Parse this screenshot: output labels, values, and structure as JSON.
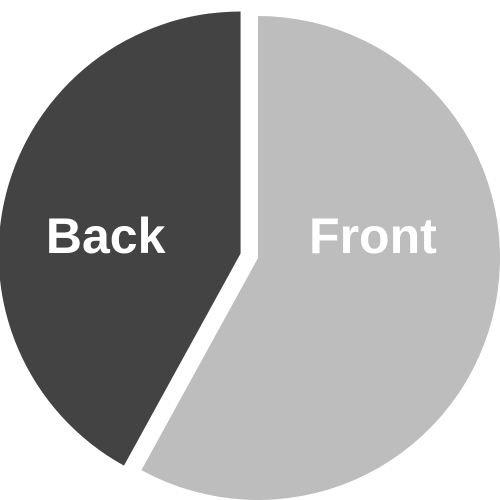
{
  "chart_data": {
    "type": "pie",
    "title": "",
    "slices": [
      {
        "label": "Front",
        "value": 58,
        "color": "#bcbdbc",
        "exploded": false
      },
      {
        "label": "Back",
        "value": 42,
        "color": "#434343",
        "exploded": true
      }
    ],
    "start": "top",
    "direction": "clockwise",
    "legend": "none"
  }
}
